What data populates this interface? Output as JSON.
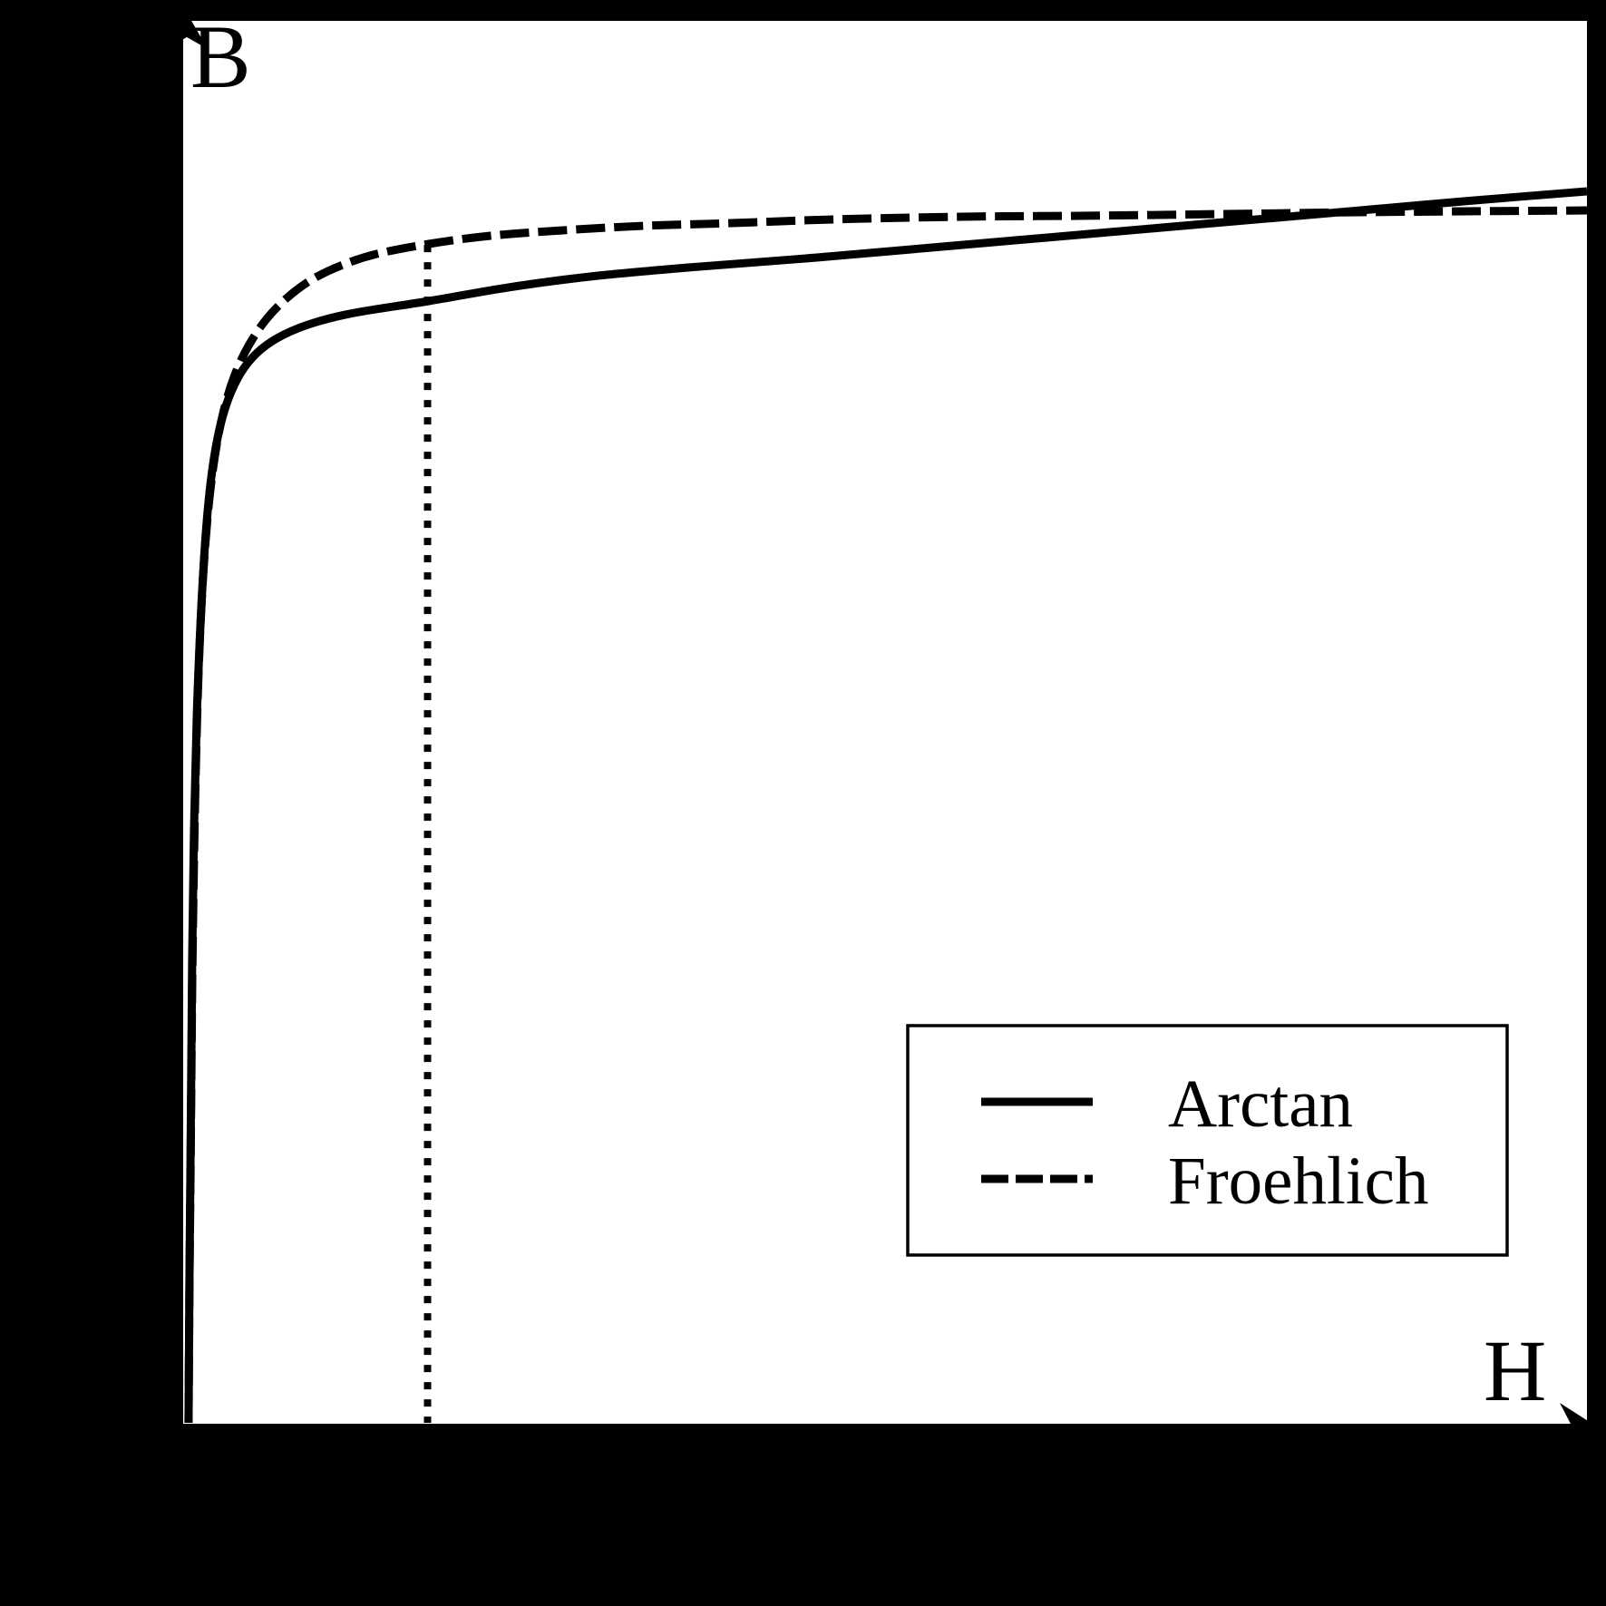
{
  "figure": {
    "background_color": "#000000",
    "plot_background_color": "#ffffff",
    "line_color": "#000000",
    "y_axis_label": "B",
    "x_axis_label": "H"
  },
  "legend": {
    "entries": [
      {
        "label": "Arctan",
        "style": "solid"
      },
      {
        "label": "Froehlich",
        "style": "dashed"
      }
    ]
  },
  "chart_data": {
    "type": "line",
    "title": "",
    "xlabel": "H",
    "ylabel": "B",
    "axis_numeric_ticks": "none",
    "grid": false,
    "legend_position": "lower-right",
    "x_range_normalized": [
      0,
      1
    ],
    "y_range_normalized": [
      0,
      1
    ],
    "description": "Anhysteretic B-H saturation curves: arctangent model vs Froehlich model, both rising steeply from the origin then saturating; curves cross near H=0.81. A vertical dotted guide line marks H=0.171 up to the Froehlich curve.",
    "series": [
      {
        "name": "Arctan",
        "line_style": "solid",
        "points": [
          [
            0.0006,
            0.0
          ],
          [
            0.0013,
            0.1093
          ],
          [
            0.0023,
            0.2193
          ],
          [
            0.0032,
            0.3292
          ],
          [
            0.0045,
            0.4198
          ],
          [
            0.0065,
            0.5039
          ],
          [
            0.0091,
            0.5686
          ],
          [
            0.0117,
            0.6171
          ],
          [
            0.0149,
            0.6572
          ],
          [
            0.0188,
            0.6882
          ],
          [
            0.024,
            0.7141
          ],
          [
            0.0311,
            0.7355
          ],
          [
            0.0402,
            0.7523
          ],
          [
            0.0525,
            0.7658
          ],
          [
            0.0687,
            0.7762
          ],
          [
            0.09,
            0.7846
          ],
          [
            0.1192,
            0.7917
          ],
          [
            0.1723,
            0.8001
          ],
          [
            0.2293,
            0.8099
          ],
          [
            0.2876,
            0.8176
          ],
          [
            0.3588,
            0.8241
          ],
          [
            0.4495,
            0.8312
          ],
          [
            0.5466,
            0.8396
          ],
          [
            0.6438,
            0.848
          ],
          [
            0.7409,
            0.8564
          ],
          [
            0.8381,
            0.8648
          ],
          [
            0.9158,
            0.8716
          ],
          [
            1.0,
            0.8784
          ]
        ]
      },
      {
        "name": "Froehlich",
        "line_style": "dashed",
        "points": [
          [
            0.0006,
            0.0
          ],
          [
            0.0013,
            0.1028
          ],
          [
            0.0023,
            0.2064
          ],
          [
            0.0032,
            0.3098
          ],
          [
            0.0045,
            0.4004
          ],
          [
            0.0062,
            0.4845
          ],
          [
            0.0084,
            0.5524
          ],
          [
            0.011,
            0.6042
          ],
          [
            0.0142,
            0.6462
          ],
          [
            0.0181,
            0.6805
          ],
          [
            0.0227,
            0.7083
          ],
          [
            0.0285,
            0.7323
          ],
          [
            0.0356,
            0.7523
          ],
          [
            0.0447,
            0.7704
          ],
          [
            0.0563,
            0.7873
          ],
          [
            0.0706,
            0.8021
          ],
          [
            0.0881,
            0.8151
          ],
          [
            0.1094,
            0.8254
          ],
          [
            0.1353,
            0.8338
          ],
          [
            0.1723,
            0.8409
          ],
          [
            0.2163,
            0.8467
          ],
          [
            0.2681,
            0.8506
          ],
          [
            0.3264,
            0.8538
          ],
          [
            0.3912,
            0.8558
          ],
          [
            0.4624,
            0.8584
          ],
          [
            0.5531,
            0.8603
          ],
          [
            0.6438,
            0.861
          ],
          [
            0.7409,
            0.8622
          ],
          [
            0.8381,
            0.8635
          ],
          [
            0.9223,
            0.8642
          ],
          [
            1.0,
            0.8648
          ]
        ]
      }
    ],
    "guide_line": {
      "style": "dotted",
      "orientation": "vertical",
      "h": 0.1714,
      "b_top": 0.8402
    },
    "crossing_point_normalized": [
      0.81,
      0.864
    ]
  }
}
